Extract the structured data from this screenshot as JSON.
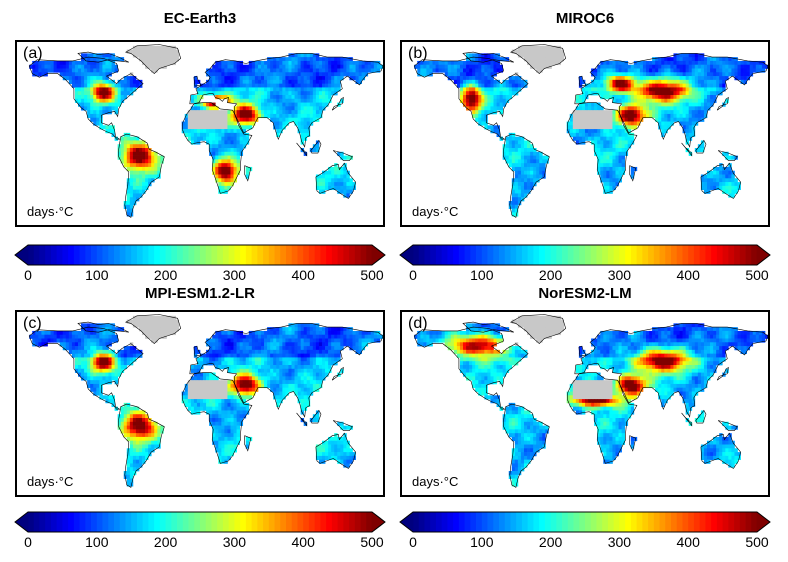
{
  "chart_data": [
    {
      "type": "heatmap",
      "title": "EC-Earth3",
      "panel_label": "(a)",
      "unit": "days·°C",
      "colorbar": {
        "ticks": [
          0,
          100,
          200,
          300,
          400,
          500
        ],
        "range": [
          0,
          500
        ],
        "colormap": "jet",
        "extend": "both"
      },
      "hotspots": [
        "Amazon basin",
        "Southern Africa",
        "Central North America",
        "Middle East",
        "Mediterranean"
      ]
    },
    {
      "type": "heatmap",
      "title": "MIROC6",
      "panel_label": "(b)",
      "unit": "days·°C",
      "colorbar": {
        "ticks": [
          0,
          100,
          200,
          300,
          400,
          500
        ],
        "range": [
          0,
          500
        ],
        "colormap": "jet",
        "extend": "both"
      },
      "hotspots": [
        "Western North America",
        "Central Asia",
        "Middle East",
        "Eastern Europe"
      ]
    },
    {
      "type": "heatmap",
      "title": "MPI-ESM1.2-LR",
      "panel_label": "(c)",
      "unit": "days·°C",
      "colorbar": {
        "ticks": [
          0,
          100,
          200,
          300,
          400,
          500
        ],
        "range": [
          0,
          500
        ],
        "colormap": "jet",
        "extend": "both"
      },
      "hotspots": [
        "Central North America",
        "Amazon basin",
        "Middle East"
      ]
    },
    {
      "type": "heatmap",
      "title": "NorESM2-LM",
      "panel_label": "(d)",
      "unit": "days·°C",
      "colorbar": {
        "ticks": [
          0,
          100,
          200,
          300,
          400,
          500
        ],
        "range": [
          0,
          500
        ],
        "colormap": "jet",
        "extend": "both"
      },
      "hotspots": [
        "Northern North America",
        "Central Asia",
        "Middle East",
        "Sahel"
      ]
    }
  ],
  "colors": {
    "jet": [
      "#00007f",
      "#0000ff",
      "#007fff",
      "#00ffff",
      "#7fff7f",
      "#ffff00",
      "#ff7f00",
      "#ff0000",
      "#7f0000"
    ],
    "masked": "#c8c8c8",
    "ocean": "#ffffff"
  }
}
